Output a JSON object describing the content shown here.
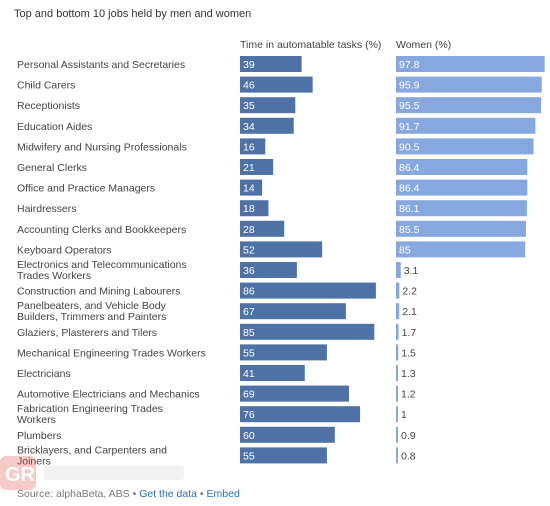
{
  "title": "Top and bottom 10 jobs held by men and women",
  "footer": {
    "source_label": "Source: alphaBeta, ABS",
    "separator": "•",
    "data_link": "Get the data",
    "embed_link": "Embed"
  },
  "watermark_text": "GR",
  "chart_data": {
    "type": "bar",
    "categories": [
      "Personal Assistants and Secretaries",
      "Child Carers",
      "Receptionists",
      "Education Aides",
      "Midwifery and Nursing Professionals",
      "General Clerks",
      "Office and Practice Managers",
      "Hairdressers",
      "Accounting Clerks and Bookkeepers",
      "Keyboard Operators",
      "Electronics and Telecommunications Trades Workers",
      "Construction and Mining Labourers",
      "Panelbeaters, and Vehicle Body Builders, Trimmers and Painters",
      "Glaziers, Plasterers and Tilers",
      "Mechanical Engineering Trades Workers",
      "Electricians",
      "Automotive Electricians and Mechanics",
      "Fabrication Engineering Trades Workers",
      "Plumbers",
      "Bricklayers, and Carpenters and Joiners"
    ],
    "series": [
      {
        "name": "Time in automatable tasks (%)",
        "color": "#4e72a6",
        "max": 100,
        "values": [
          39,
          46,
          35,
          34,
          16,
          21,
          14,
          18,
          28,
          52,
          36,
          86,
          67,
          85,
          55,
          41,
          69,
          76,
          60,
          55
        ]
      },
      {
        "name": "Women (%)",
        "color": "#86a8de",
        "max": 100,
        "values": [
          97.8,
          95.9,
          95.5,
          91.7,
          90.5,
          86.4,
          86.4,
          86.1,
          85.5,
          85,
          3.1,
          2.2,
          2.1,
          1.7,
          1.5,
          1.3,
          1.2,
          1,
          0.9,
          0.8
        ]
      }
    ],
    "grid": false,
    "legend": "column headers"
  }
}
